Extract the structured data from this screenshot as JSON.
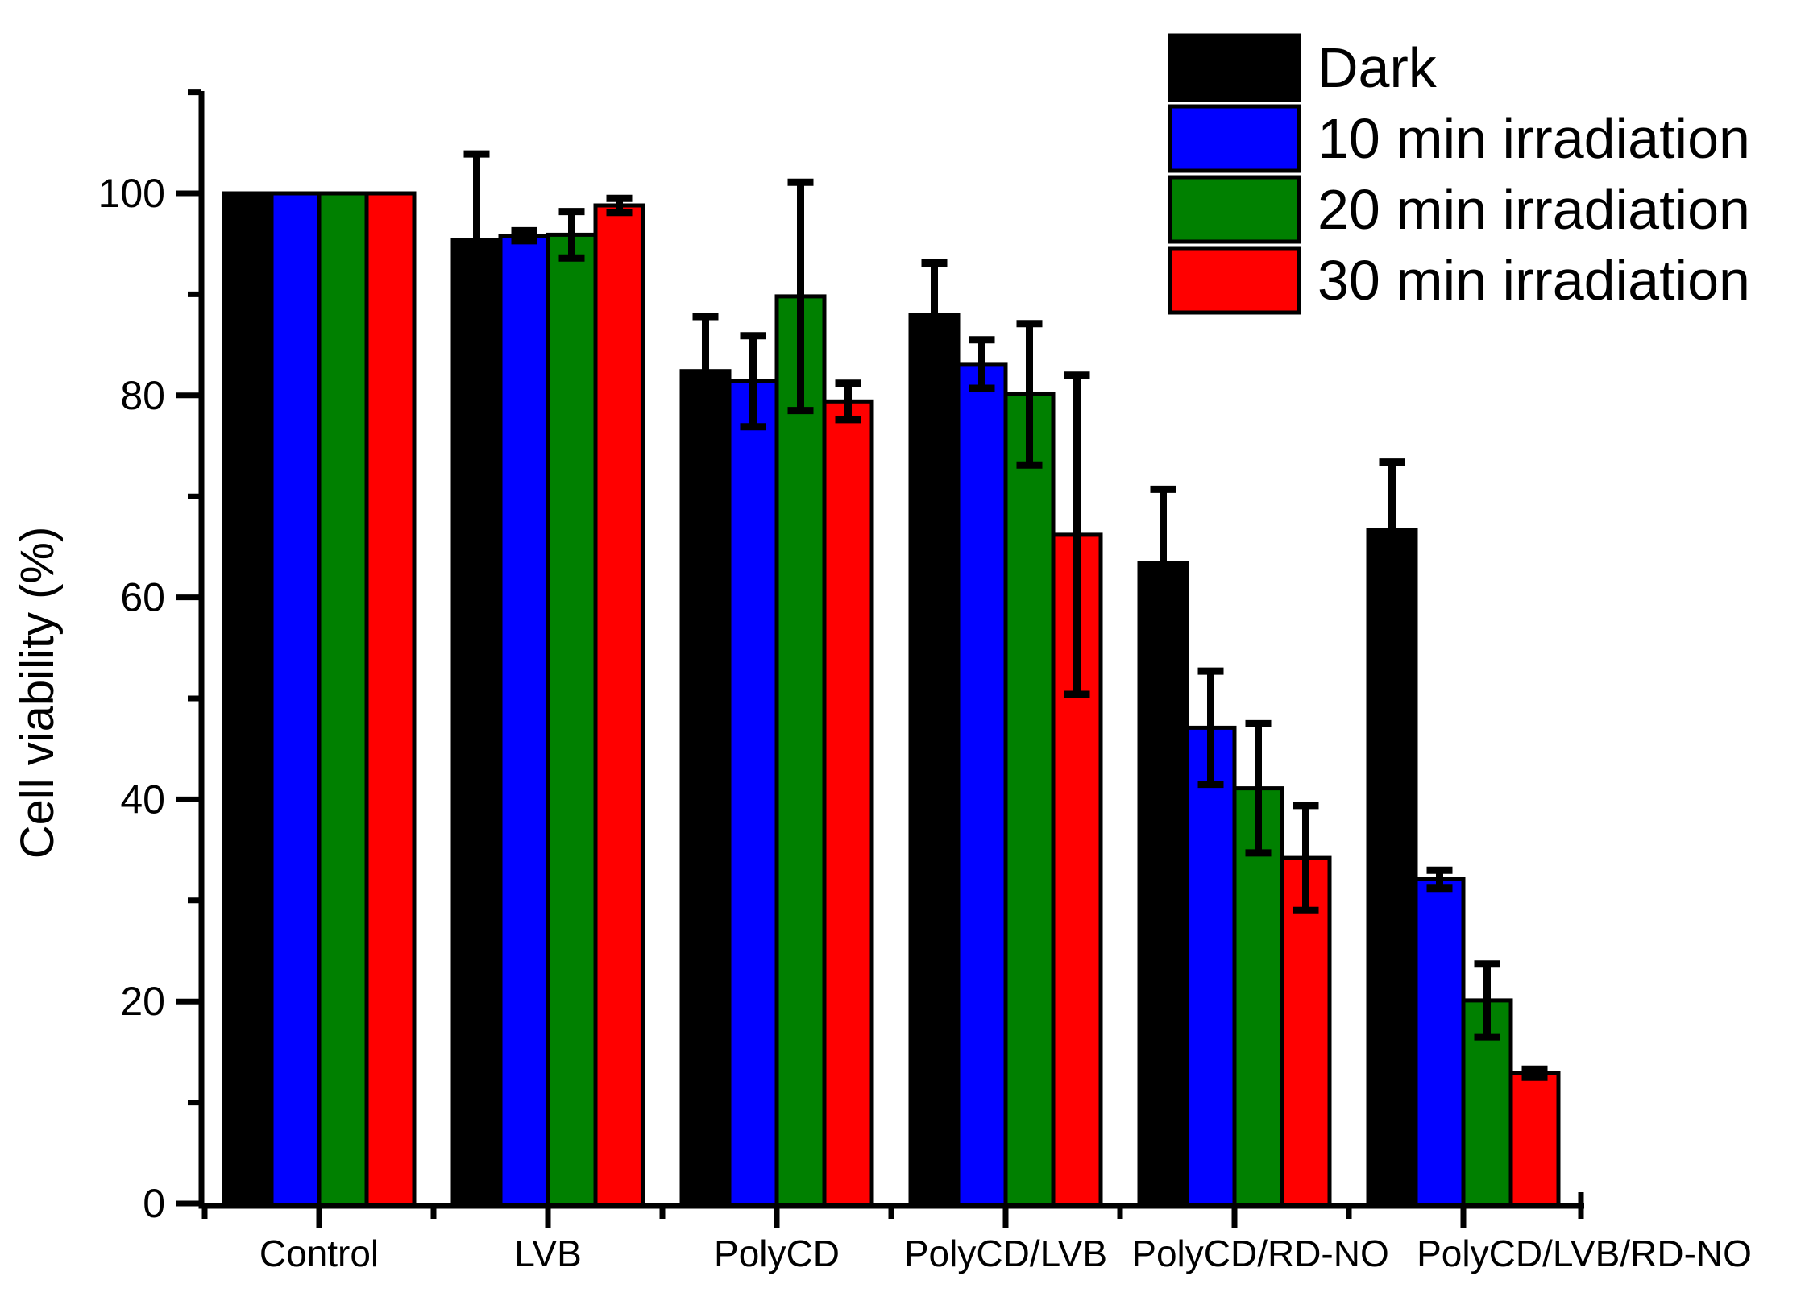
{
  "figure": {
    "background": "#ffffff",
    "axis_color": "#000000"
  },
  "chart_data": {
    "type": "bar",
    "title": "",
    "xlabel": "",
    "ylabel": "Cell viability (%)",
    "ylim": [
      0,
      110
    ],
    "yticks_major": [
      0,
      20,
      40,
      60,
      80,
      100
    ],
    "yticks_minor": [
      10,
      30,
      50,
      70,
      90,
      110
    ],
    "grid": false,
    "legend_position": "top-right",
    "bar_group_layout": "grouped-4-no-gap",
    "error_bars": "symmetric-caps",
    "categories": [
      "Control",
      "LVB",
      "PolyCD",
      "PolyCD/LVB",
      "PolyCD/RD-NO",
      "PolyCD/LVB/RD-NO"
    ],
    "series": [
      {
        "name": "Dark",
        "color": "#000000",
        "values": [
          100,
          95.4,
          82.4,
          88.0,
          63.4,
          66.7
        ],
        "errors": [
          0,
          8.5,
          5.4,
          5.1,
          7.3,
          6.7
        ]
      },
      {
        "name": "10 min irradiation",
        "color": "#0000FF",
        "values": [
          100,
          95.8,
          81.4,
          83.1,
          47.1,
          32.1
        ],
        "errors": [
          0,
          0.5,
          4.5,
          2.4,
          5.6,
          0.9
        ]
      },
      {
        "name": "20 min irradiation",
        "color": "#008000",
        "values": [
          100,
          95.9,
          89.8,
          80.1,
          41.1,
          20.1
        ],
        "errors": [
          0,
          2.3,
          11.3,
          7.0,
          6.4,
          3.6
        ]
      },
      {
        "name": "30 min irradiation",
        "color": "#FF0000",
        "values": [
          100,
          98.8,
          79.4,
          66.2,
          34.2,
          12.9
        ],
        "errors": [
          0,
          0.7,
          1.8,
          15.8,
          5.2,
          0.4
        ]
      }
    ]
  }
}
